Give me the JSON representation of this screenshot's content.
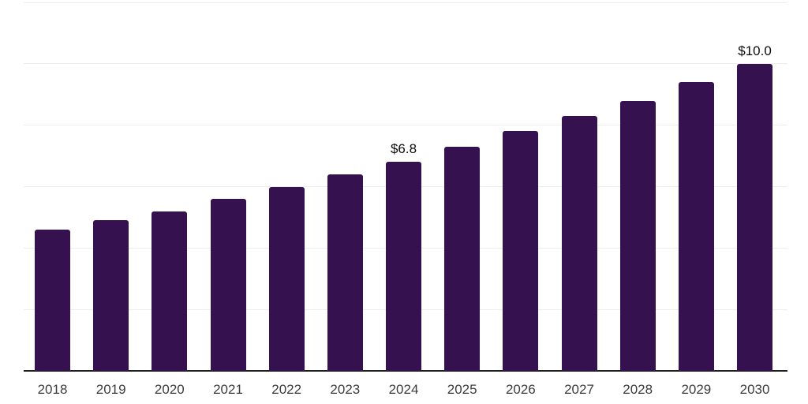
{
  "chart_data": {
    "type": "bar",
    "title": "",
    "xlabel": "",
    "ylabel": "",
    "categories": [
      "2018",
      "2019",
      "2020",
      "2021",
      "2022",
      "2023",
      "2024",
      "2025",
      "2026",
      "2027",
      "2028",
      "2029",
      "2030"
    ],
    "values": [
      4.6,
      4.9,
      5.2,
      5.6,
      6.0,
      6.4,
      6.8,
      7.3,
      7.8,
      8.3,
      8.8,
      9.4,
      10.0
    ],
    "ylim": [
      0,
      12
    ],
    "gridline_step": 2,
    "grid": true,
    "legend": "none",
    "annotations": [
      {
        "category": "2024",
        "label": "$6.8"
      },
      {
        "category": "2030",
        "label": "$10.0"
      }
    ],
    "colors": {
      "bar": "#36114f",
      "gridline": "#ededed",
      "axis_line": "#1f1f1f",
      "year_label": "#3c3c3c",
      "value_label": "#0d0d0d",
      "background": "#ffffff"
    }
  }
}
